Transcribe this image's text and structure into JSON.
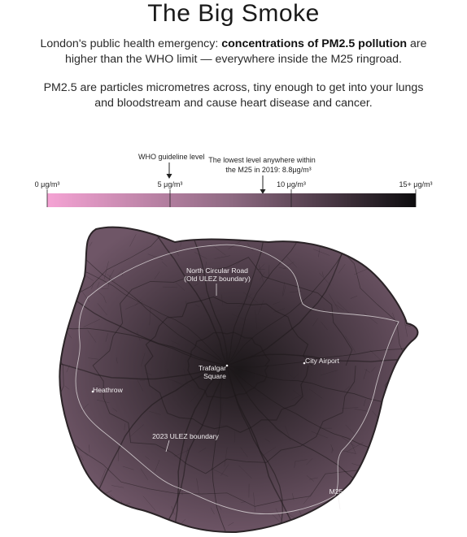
{
  "title": "The Big Smoke",
  "intro": {
    "prefix": "London's public health emergency: ",
    "highlight": "concentrations of PM2.5 pollution",
    "suffix": " are higher than the WHO limit — everywhere inside the M25 ringroad."
  },
  "explanation": "PM2.5 are particles micrometres across, tiny enough to get into your lungs and bloodstream and cause heart disease and cancer.",
  "legend": {
    "ticks": [
      {
        "value": 0,
        "label": "0 μg/m³"
      },
      {
        "value": 5,
        "label": "5 μg/m³"
      },
      {
        "value": 10,
        "label": "10 μg/m³"
      },
      {
        "value": 15,
        "label": "15+ μg/m³"
      }
    ],
    "domain": [
      0,
      15
    ],
    "colors": {
      "low": "#f5a3d4",
      "mid": "#8e6a82",
      "high": "#0d0c0e"
    },
    "who": {
      "value": 5,
      "label": "WHO guideline level"
    },
    "lowest": {
      "value": 8.8,
      "line1": "The lowest level anywhere within",
      "line2": "the M25 in 2019: 8.8μg/m³"
    }
  },
  "map": {
    "colors": {
      "base": "#6f5667",
      "dark": "#1b1719",
      "boundary": "#d9d3d6"
    },
    "labels": {
      "north_circular_1": "North Circular Road",
      "north_circular_2": "(Old ULEZ boundary)",
      "city_airport": "City Airport",
      "trafalgar_1": "Trafalgar",
      "trafalgar_2": "Square",
      "heathrow": "Heathrow",
      "ulez_2023": "2023 ULEZ boundary",
      "m25": "M25"
    }
  }
}
